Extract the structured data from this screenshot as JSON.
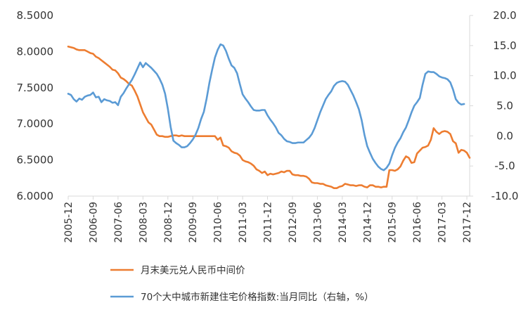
{
  "chart_data": {
    "type": "line",
    "title": "",
    "xlabel": "",
    "ylabel": "",
    "y_left": {
      "min": 6.0,
      "max": 8.5,
      "ticks": [
        "6.0000",
        "6.5000",
        "7.0000",
        "7.5000",
        "8.0000",
        "8.5000"
      ]
    },
    "y_right": {
      "min": -10.0,
      "max": 20.0,
      "ticks": [
        "-10.0",
        "-5.0",
        "0.0",
        "5.0",
        "10.0",
        "15.0",
        "20.0"
      ]
    },
    "x_ticks": [
      "2005-12",
      "2006-09",
      "2007-06",
      "2008-03",
      "2008-12",
      "2009-09",
      "2010-06",
      "2011-03",
      "2011-12",
      "2012-09",
      "2013-06",
      "2014-03",
      "2014-12",
      "2015-09",
      "2016-06",
      "2017-03",
      "2017-12"
    ],
    "x_start": "2005-12",
    "legend_position": "bottom",
    "grid": false,
    "series": [
      {
        "name": "月末美元兑人民币中间价",
        "axis": "left",
        "color": "#ED7D31",
        "values": [
          8.07,
          8.06,
          8.05,
          8.03,
          8.02,
          8.02,
          8.02,
          8.0,
          7.98,
          7.97,
          7.93,
          7.91,
          7.88,
          7.85,
          7.82,
          7.79,
          7.75,
          7.74,
          7.7,
          7.64,
          7.62,
          7.59,
          7.55,
          7.53,
          7.46,
          7.38,
          7.27,
          7.16,
          7.09,
          7.02,
          6.99,
          6.92,
          6.85,
          6.83,
          6.83,
          6.82,
          6.82,
          6.83,
          6.84,
          6.84,
          6.83,
          6.84,
          6.83,
          6.83,
          6.83,
          6.83,
          6.83,
          6.83,
          6.83,
          6.83,
          6.83,
          6.83,
          6.83,
          6.83,
          6.78,
          6.81,
          6.7,
          6.69,
          6.67,
          6.62,
          6.6,
          6.59,
          6.56,
          6.5,
          6.48,
          6.47,
          6.45,
          6.42,
          6.37,
          6.35,
          6.32,
          6.34,
          6.29,
          6.31,
          6.3,
          6.31,
          6.32,
          6.34,
          6.33,
          6.35,
          6.35,
          6.3,
          6.29,
          6.29,
          6.28,
          6.28,
          6.27,
          6.24,
          6.19,
          6.18,
          6.18,
          6.17,
          6.17,
          6.15,
          6.14,
          6.13,
          6.11,
          6.11,
          6.13,
          6.14,
          6.17,
          6.16,
          6.15,
          6.15,
          6.14,
          6.15,
          6.15,
          6.13,
          6.12,
          6.15,
          6.15,
          6.13,
          6.13,
          6.12,
          6.13,
          6.13,
          6.36,
          6.36,
          6.35,
          6.37,
          6.41,
          6.49,
          6.55,
          6.53,
          6.46,
          6.47,
          6.59,
          6.63,
          6.67,
          6.68,
          6.7,
          6.78,
          6.94,
          6.89,
          6.86,
          6.89,
          6.9,
          6.89,
          6.86,
          6.76,
          6.73,
          6.6,
          6.64,
          6.63,
          6.6,
          6.53
        ]
      },
      {
        "name": "70个大中城市新建住宅价格指数:当月同比（右轴，%）",
        "axis": "right",
        "color": "#5B9BD5",
        "values": [
          7.0,
          6.8,
          6.1,
          5.7,
          6.2,
          6.0,
          6.5,
          6.7,
          6.8,
          7.2,
          6.4,
          6.5,
          5.6,
          6.1,
          5.9,
          5.8,
          5.5,
          5.6,
          5.1,
          6.5,
          7.1,
          7.9,
          8.6,
          9.3,
          10.2,
          11.2,
          12.2,
          11.4,
          12.1,
          11.7,
          11.3,
          10.8,
          10.3,
          9.5,
          8.5,
          7.0,
          4.5,
          1.5,
          -0.8,
          -1.2,
          -1.5,
          -1.9,
          -1.9,
          -1.7,
          -1.2,
          -0.6,
          0.2,
          1.3,
          2.8,
          4.0,
          6.2,
          8.8,
          11.0,
          13.0,
          14.3,
          15.2,
          15.0,
          14.1,
          12.8,
          11.7,
          11.3,
          10.4,
          8.6,
          6.9,
          6.2,
          5.6,
          4.9,
          4.3,
          4.2,
          4.2,
          4.3,
          4.3,
          3.4,
          2.7,
          2.1,
          1.4,
          0.5,
          0.1,
          -0.5,
          -0.9,
          -1.0,
          -1.2,
          -1.2,
          -1.1,
          -1.1,
          -1.1,
          -0.7,
          -0.3,
          0.3,
          1.3,
          2.6,
          3.9,
          5.0,
          6.1,
          6.8,
          7.4,
          8.3,
          8.8,
          9.0,
          9.1,
          9.0,
          8.5,
          7.6,
          6.7,
          5.6,
          4.4,
          2.6,
          0.2,
          -1.7,
          -2.8,
          -3.8,
          -4.5,
          -5.1,
          -5.5,
          -5.7,
          -5.3,
          -4.6,
          -3.2,
          -2.0,
          -1.1,
          -0.4,
          0.6,
          1.4,
          2.6,
          3.9,
          5.0,
          5.6,
          6.3,
          8.5,
          10.3,
          10.7,
          10.6,
          10.6,
          10.3,
          9.9,
          9.7,
          9.6,
          9.4,
          8.9,
          7.7,
          6.1,
          5.5,
          5.2,
          5.3
        ]
      }
    ]
  }
}
